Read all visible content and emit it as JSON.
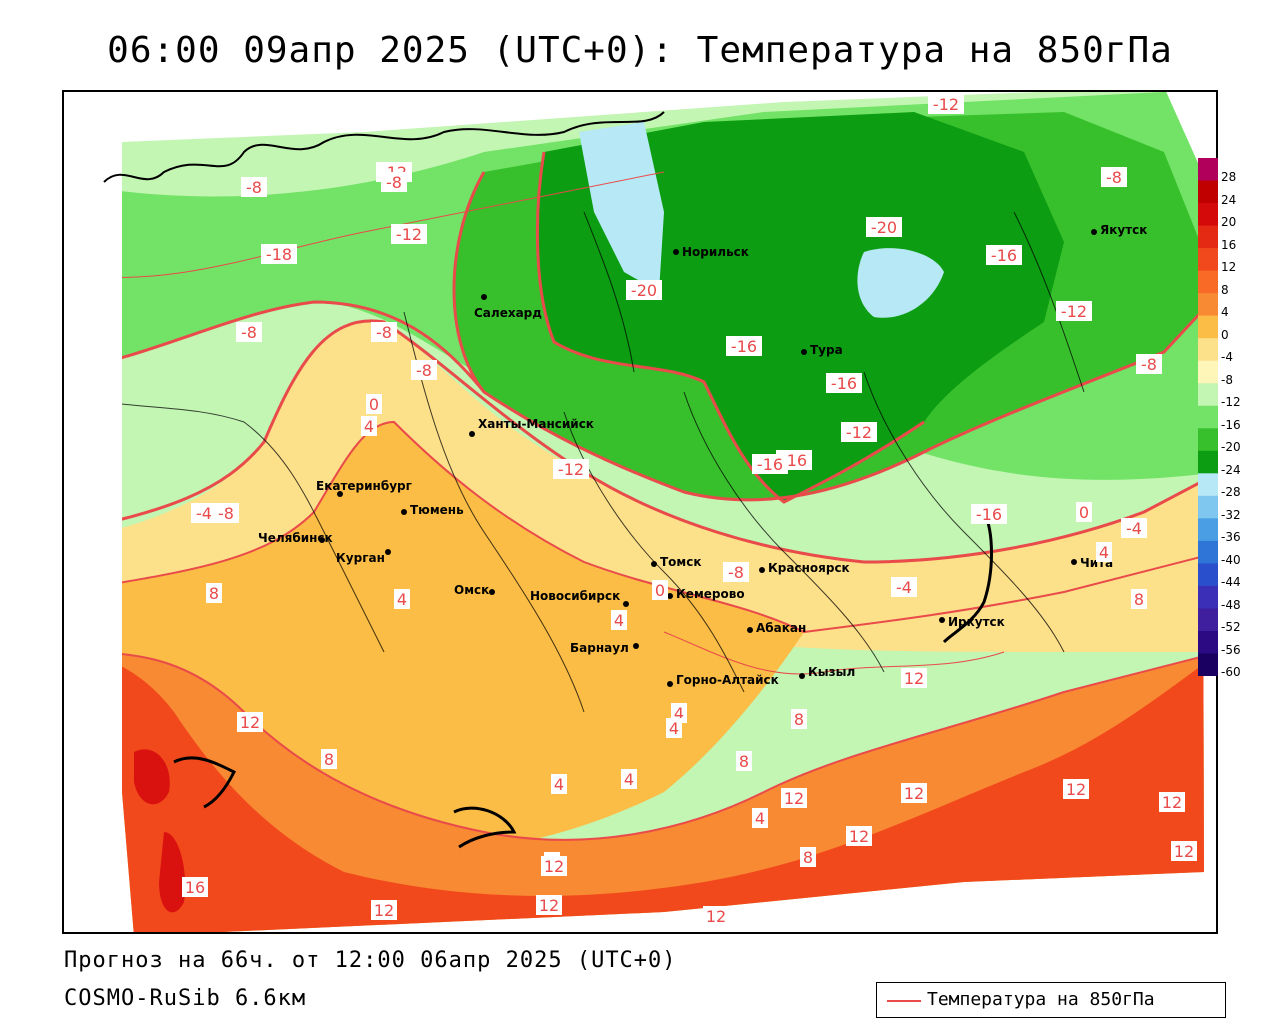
{
  "title": "06:00 09апр 2025 (UTC+0): Температура на 850гПа",
  "forecast": "Прогноз на 66ч. от 12:00 06апр 2025 (UTC+0)",
  "model": "COSMO-RuSib 6.6км",
  "legend": {
    "label": "Температура на 850гПа",
    "line_color": "#e94a4a"
  },
  "colors": {
    "very_warm": "#d9120f",
    "warm": "#f2491c",
    "mild": "#f88a33",
    "cool": "#fbbd45",
    "cold_light": "#fde08a",
    "cold": "#c3f5b3",
    "colder": "#72e366",
    "coldest_green": "#38c02c",
    "deep_green": "#0c9d12",
    "ice": "#b7e8f5"
  },
  "scale": {
    "ticks": [
      "28",
      "24",
      "20",
      "16",
      "12",
      "8",
      "4",
      "0",
      "-4",
      "-8",
      "-12",
      "-16",
      "-20",
      "-24",
      "-28",
      "-32",
      "-36",
      "-40",
      "-44",
      "-48",
      "-52",
      "-56",
      "-60"
    ]
  },
  "cities": [
    {
      "name": "Норильск"
    },
    {
      "name": "Якутск"
    },
    {
      "name": "Салехард"
    },
    {
      "name": "Тура"
    },
    {
      "name": "Ханты-Мансийск"
    },
    {
      "name": "Екатеринбург"
    },
    {
      "name": "Тюмень"
    },
    {
      "name": "Челябинск"
    },
    {
      "name": "Курган"
    },
    {
      "name": "Омск"
    },
    {
      "name": "Новосибирск"
    },
    {
      "name": "Томск"
    },
    {
      "name": "Кемерово"
    },
    {
      "name": "Красноярск"
    },
    {
      "name": "Абакан"
    },
    {
      "name": "Барнаул"
    },
    {
      "name": "Горно-Алтайск"
    },
    {
      "name": "Кызыл"
    },
    {
      "name": "Иркутск"
    },
    {
      "name": "Чита"
    }
  ],
  "contour_labels": [
    "-12",
    "-8",
    "-8",
    "-12",
    "-18",
    "-8",
    "-8",
    "-20",
    "-20",
    "-16",
    "-16",
    "-12",
    "-16",
    "-8",
    "-16",
    "-12",
    "-16",
    "-16",
    "-8",
    "-12",
    "-12",
    "-8",
    "0",
    "4",
    "-4",
    "8",
    "4",
    "4",
    "0",
    "-8",
    "-8",
    "-4",
    "0",
    "-4",
    "4",
    "4",
    "12",
    "12",
    "4",
    "4",
    "4",
    "8",
    "8",
    "12",
    "12",
    "8",
    "12",
    "12",
    "8",
    "12",
    "12",
    "16",
    "8",
    "4",
    "12",
    "12",
    "12",
    "8",
    "12"
  ]
}
